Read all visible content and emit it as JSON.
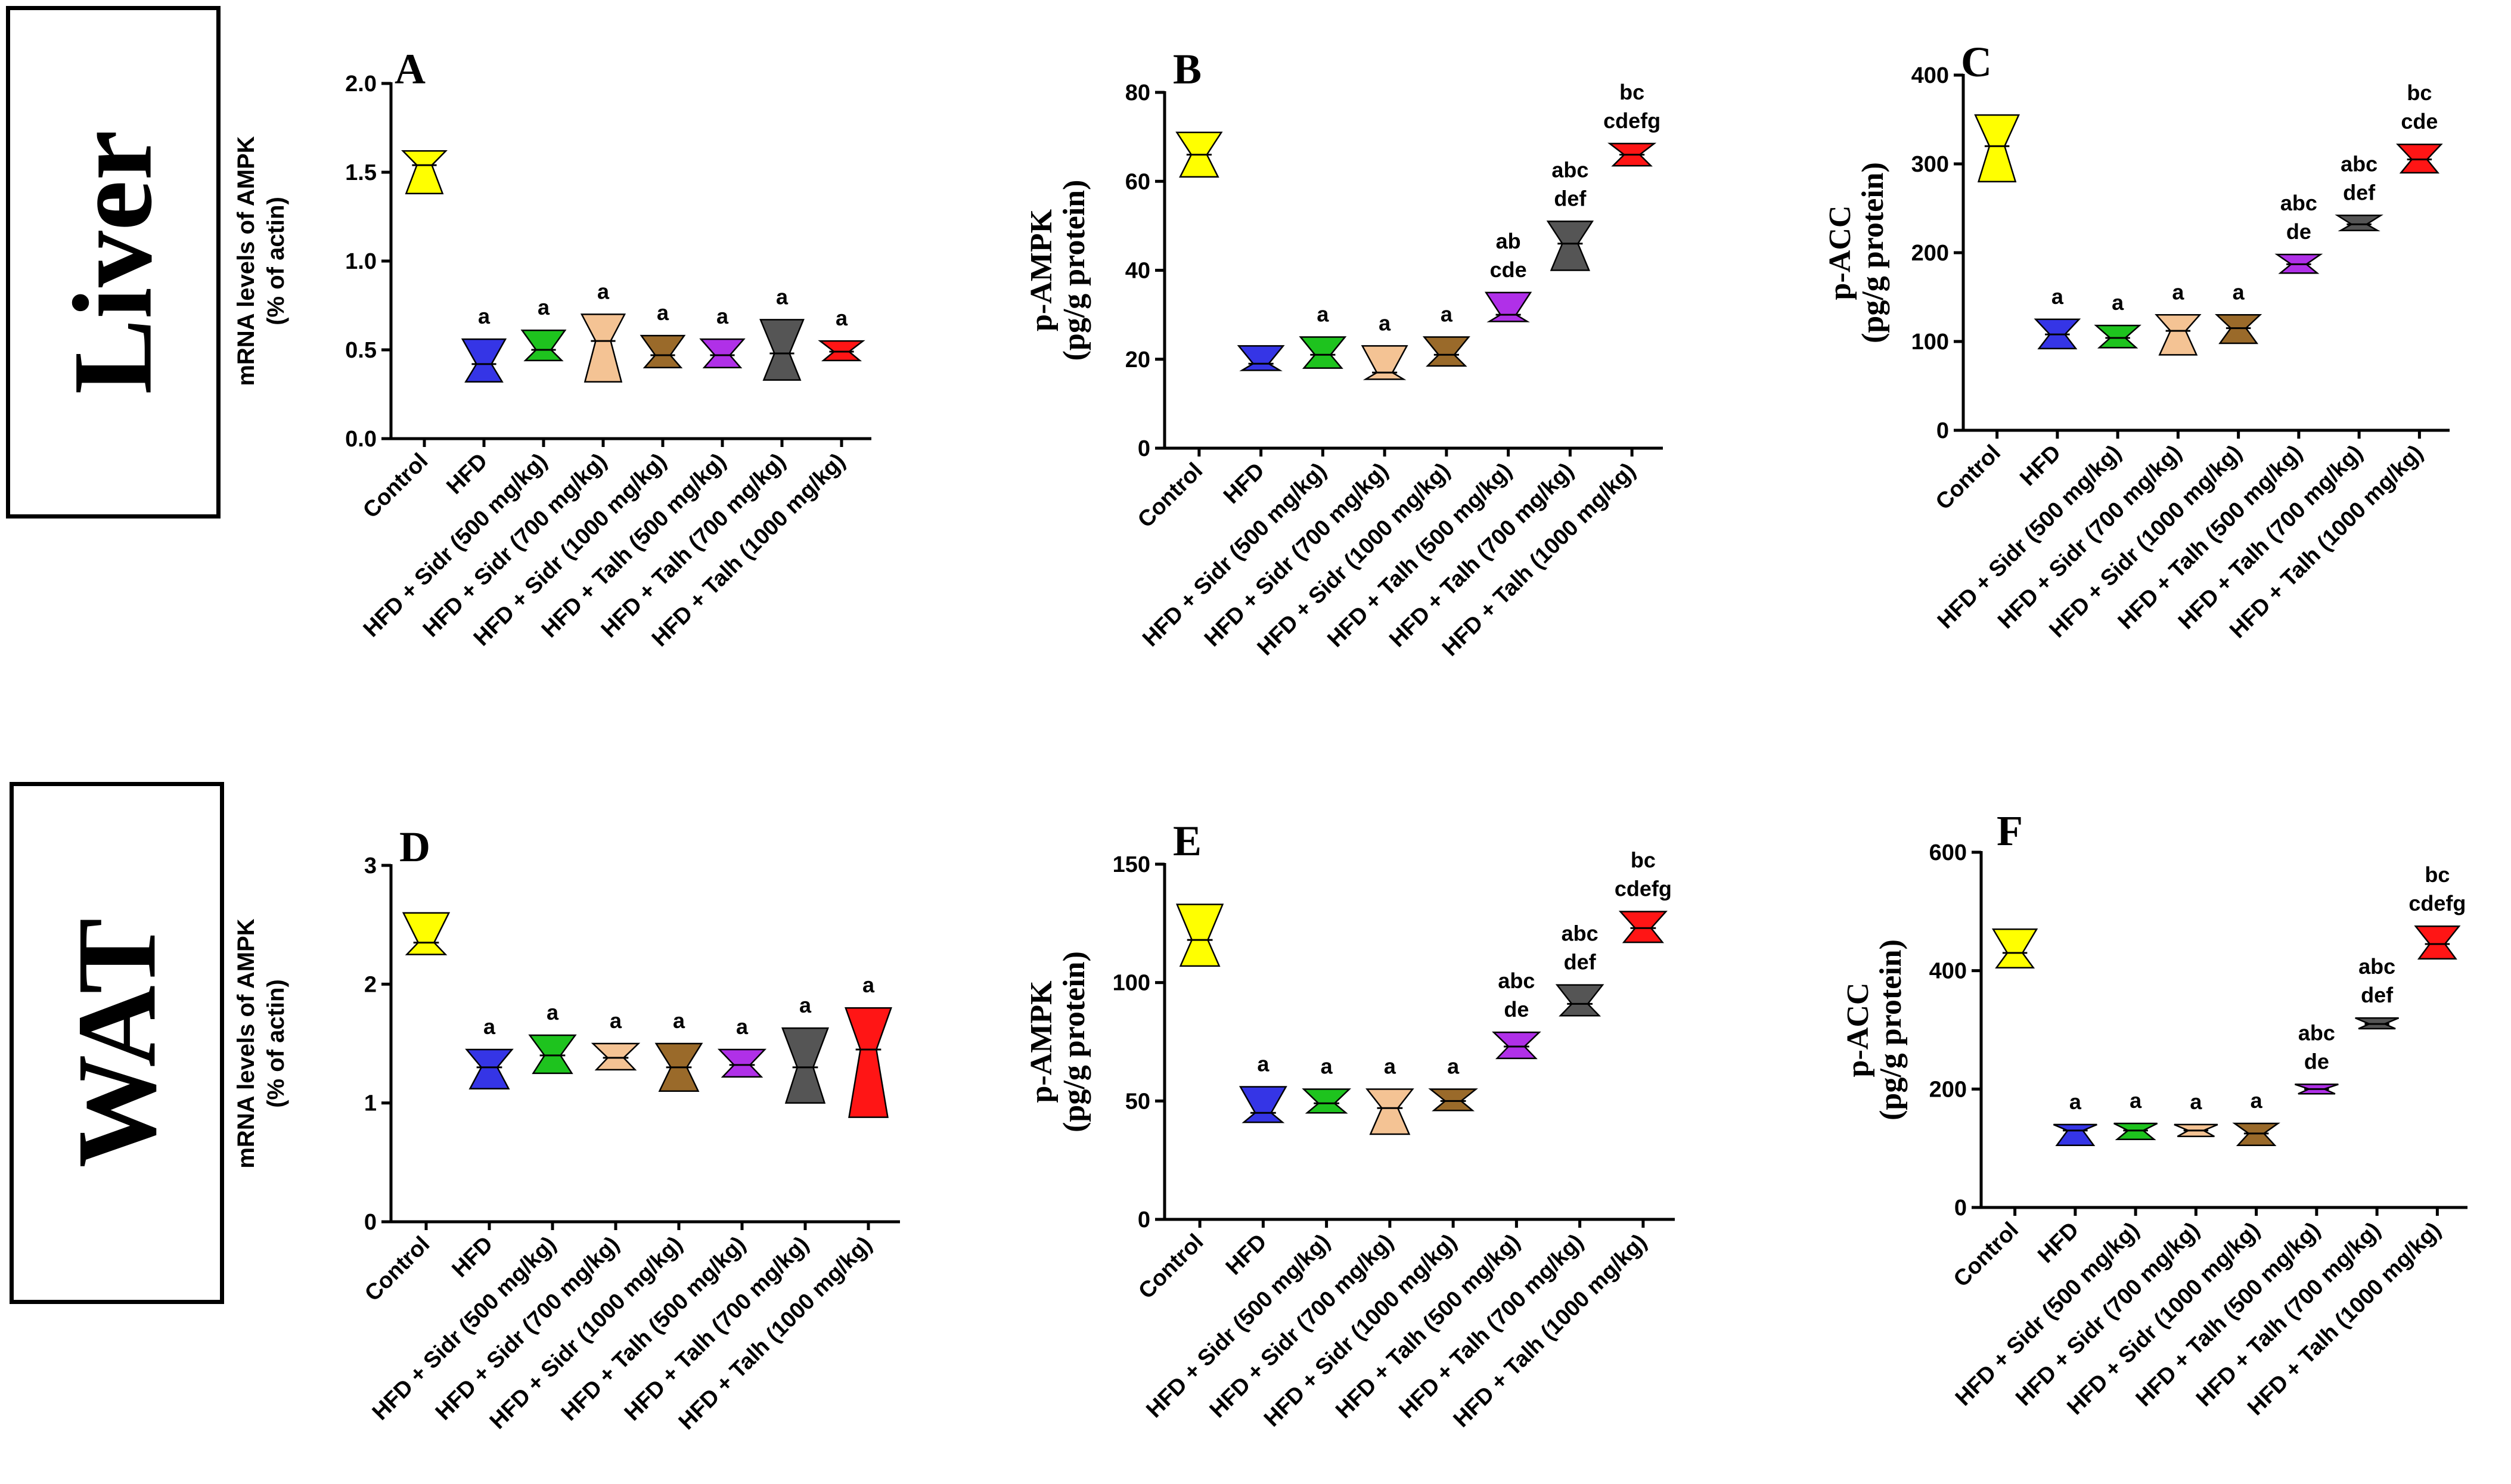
{
  "row_labels": {
    "liver": "Liver",
    "wat": "WAT"
  },
  "group_colors": [
    "#ffff00",
    "#3535e6",
    "#1ec31e",
    "#f4c394",
    "#b030e8",
    "#9a6a2a",
    "#555555",
    "#ff1515"
  ],
  "chart_data": [
    {
      "id": "A",
      "type": "violin",
      "panel_label": "A",
      "row": "Liver",
      "ylabel_lines": [
        "mRNA levels of AMPK",
        "(%  of actin)"
      ],
      "ylabel_font": "sans",
      "ylim": [
        0,
        2.0
      ],
      "ticks": [
        0.0,
        0.5,
        1.0,
        1.5,
        2.0
      ],
      "tick_labels": [
        "0.0",
        "0.5",
        "1.0",
        "1.5",
        "2.0"
      ],
      "categories": [
        "Control",
        "HFD",
        "HFD + Sidr (500 mg/kg)",
        "HFD + Sidr (700 mg/kg)",
        "HFD + Sidr (1000 mg/kg)",
        "HFD + Talh (500 mg/kg)",
        "HFD + Talh (700 mg/kg)",
        "HFD + Talh (1000 mg/kg)"
      ],
      "color_index": [
        0,
        1,
        2,
        3,
        5,
        4,
        6,
        7
      ],
      "median": [
        1.54,
        0.42,
        0.5,
        0.55,
        0.47,
        0.47,
        0.48,
        0.49
      ],
      "min": [
        1.38,
        0.32,
        0.44,
        0.32,
        0.4,
        0.4,
        0.33,
        0.44
      ],
      "max": [
        1.62,
        0.56,
        0.61,
        0.7,
        0.58,
        0.56,
        0.67,
        0.55
      ],
      "significance": [
        "",
        "a",
        "a",
        "a",
        "a",
        "a",
        "a",
        "a"
      ]
    },
    {
      "id": "B",
      "type": "violin",
      "panel_label": "B",
      "row": "Liver",
      "ylabel_lines": [
        "p-AMPK",
        "(pg/g protein)"
      ],
      "ylabel_font": "serif",
      "ylim": [
        0,
        80
      ],
      "ticks": [
        0,
        20,
        40,
        60,
        80
      ],
      "tick_labels": [
        "0",
        "20",
        "40",
        "60",
        "80"
      ],
      "categories": [
        "Control",
        "HFD",
        "HFD + Sidr (500 mg/kg)",
        "HFD + Sidr (700 mg/kg)",
        "HFD + Sidr (1000 mg/kg)",
        "HFD + Talh (500 mg/kg)",
        "HFD + Talh (700 mg/kg)",
        "HFD + Talh (1000 mg/kg)"
      ],
      "color_index": [
        0,
        1,
        2,
        3,
        5,
        4,
        6,
        7
      ],
      "median": [
        66,
        19,
        21,
        17,
        21,
        30,
        46,
        66
      ],
      "min": [
        61,
        17.5,
        18,
        15.5,
        18.5,
        28.5,
        40,
        63.5
      ],
      "max": [
        71,
        23,
        25,
        23,
        25,
        35,
        51,
        68.5
      ],
      "significance": [
        "",
        "",
        "a",
        "a",
        "a",
        "ab\ncde",
        "abc\ndef",
        "bc\ncdefg"
      ]
    },
    {
      "id": "C",
      "type": "violin",
      "panel_label": "C",
      "row": "Liver",
      "ylabel_lines": [
        "p-ACC",
        "(pg/g protein)"
      ],
      "ylabel_font": "serif",
      "ylim": [
        0,
        400
      ],
      "ticks": [
        0,
        100,
        200,
        300,
        400
      ],
      "tick_labels": [
        "0",
        "100",
        "200",
        "300",
        "400"
      ],
      "categories": [
        "Control",
        "HFD",
        "HFD + Sidr (500 mg/kg)",
        "HFD + Sidr (700 mg/kg)",
        "HFD + Sidr (1000 mg/kg)",
        "HFD + Talh (500 mg/kg)",
        "HFD + Talh (700 mg/kg)",
        "HFD + Talh (1000 mg/kg)"
      ],
      "color_index": [
        0,
        1,
        2,
        3,
        5,
        4,
        6,
        7
      ],
      "median": [
        320,
        108,
        104,
        112,
        115,
        187,
        232,
        305
      ],
      "min": [
        280,
        92,
        93,
        85,
        98,
        177,
        225,
        290
      ],
      "max": [
        355,
        125,
        118,
        130,
        130,
        198,
        242,
        322
      ],
      "significance": [
        "",
        "a",
        "a",
        "a",
        "a",
        "abc\nde",
        "abc\ndef",
        "bc\ncde"
      ]
    },
    {
      "id": "D",
      "type": "violin",
      "panel_label": "D",
      "row": "WAT",
      "ylabel_lines": [
        "mRNA levels of AMPK",
        "(%  of actin)"
      ],
      "ylabel_font": "sans",
      "ylim": [
        0,
        3
      ],
      "ticks": [
        0,
        1,
        2,
        3
      ],
      "tick_labels": [
        "0",
        "1",
        "2",
        "3"
      ],
      "categories": [
        "Control",
        "HFD",
        "HFD + Sidr (500 mg/kg)",
        "HFD + Sidr (700 mg/kg)",
        "HFD + Sidr (1000 mg/kg)",
        "HFD + Talh (500 mg/kg)",
        "HFD + Talh (700 mg/kg)",
        "HFD + Talh (1000 mg/kg)"
      ],
      "color_index": [
        0,
        1,
        2,
        3,
        5,
        4,
        6,
        7
      ],
      "median": [
        2.35,
        1.3,
        1.4,
        1.38,
        1.3,
        1.32,
        1.3,
        1.45
      ],
      "min": [
        2.25,
        1.12,
        1.25,
        1.28,
        1.1,
        1.22,
        1.0,
        0.88
      ],
      "max": [
        2.6,
        1.45,
        1.57,
        1.5,
        1.5,
        1.45,
        1.63,
        1.8
      ],
      "significance": [
        "",
        "a",
        "a",
        "a",
        "a",
        "a",
        "a",
        "a"
      ]
    },
    {
      "id": "E",
      "type": "violin",
      "panel_label": "E",
      "row": "WAT",
      "ylabel_lines": [
        "p-AMPK",
        "(pg/g protein)"
      ],
      "ylabel_font": "serif",
      "ylim": [
        0,
        150
      ],
      "ticks": [
        0,
        50,
        100,
        150
      ],
      "tick_labels": [
        "0",
        "50",
        "100",
        "150"
      ],
      "categories": [
        "Control",
        "HFD",
        "HFD + Sidr (500 mg/kg)",
        "HFD + Sidr (700 mg/kg)",
        "HFD + Sidr (1000 mg/kg)",
        "HFD + Talh (500 mg/kg)",
        "HFD + Talh (700 mg/kg)",
        "HFD + Talh (1000 mg/kg)"
      ],
      "color_index": [
        0,
        1,
        2,
        3,
        5,
        4,
        6,
        7
      ],
      "median": [
        118,
        45,
        49,
        47,
        50,
        73,
        91,
        123
      ],
      "min": [
        107,
        41,
        45,
        36,
        46,
        68,
        86,
        117
      ],
      "max": [
        133,
        56,
        55,
        55,
        55,
        79,
        99,
        130
      ],
      "significance": [
        "",
        "a",
        "a",
        "a",
        "a",
        "abc\nde",
        "abc\ndef",
        "bc\ncdefg"
      ]
    },
    {
      "id": "F",
      "type": "violin",
      "panel_label": "F",
      "row": "WAT",
      "ylabel_lines": [
        "p-ACC",
        "(pg/g protein)"
      ],
      "ylabel_font": "serif",
      "ylim": [
        0,
        600
      ],
      "ticks": [
        0,
        200,
        400,
        600
      ],
      "tick_labels": [
        "0",
        "200",
        "400",
        "600"
      ],
      "categories": [
        "Control",
        "HFD",
        "HFD + Sidr (500 mg/kg)",
        "HFD + Sidr (700 mg/kg)",
        "HFD + Sidr (1000 mg/kg)",
        "HFD + Talh (500 mg/kg)",
        "HFD + Talh (700 mg/kg)",
        "HFD + Talh (1000 mg/kg)"
      ],
      "color_index": [
        0,
        1,
        2,
        3,
        5,
        4,
        6,
        7
      ],
      "median": [
        430,
        130,
        130,
        130,
        125,
        200,
        310,
        445
      ],
      "min": [
        405,
        105,
        115,
        120,
        105,
        192,
        302,
        420
      ],
      "max": [
        470,
        140,
        142,
        140,
        142,
        208,
        320,
        475
      ],
      "significance": [
        "",
        "a",
        "a",
        "a",
        "a",
        "abc\nde",
        "abc\ndef",
        "bc\ncdefg"
      ]
    }
  ]
}
